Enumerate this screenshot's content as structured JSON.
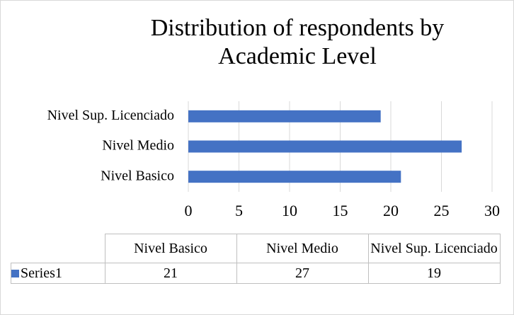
{
  "chart_data": {
    "type": "bar",
    "orientation": "horizontal",
    "title": "Distribution of respondents by Academic Level",
    "categories": [
      "Nivel Basico",
      "Nivel Medio",
      "Nivel Sup. Licenciado"
    ],
    "series": [
      {
        "name": "Series1",
        "color": "#4472c4",
        "values": [
          21,
          27,
          19
        ]
      }
    ],
    "xlim": [
      0,
      30
    ],
    "xticks": [
      0,
      5,
      10,
      15,
      20,
      25,
      30
    ],
    "grid": true,
    "data_table": true
  }
}
